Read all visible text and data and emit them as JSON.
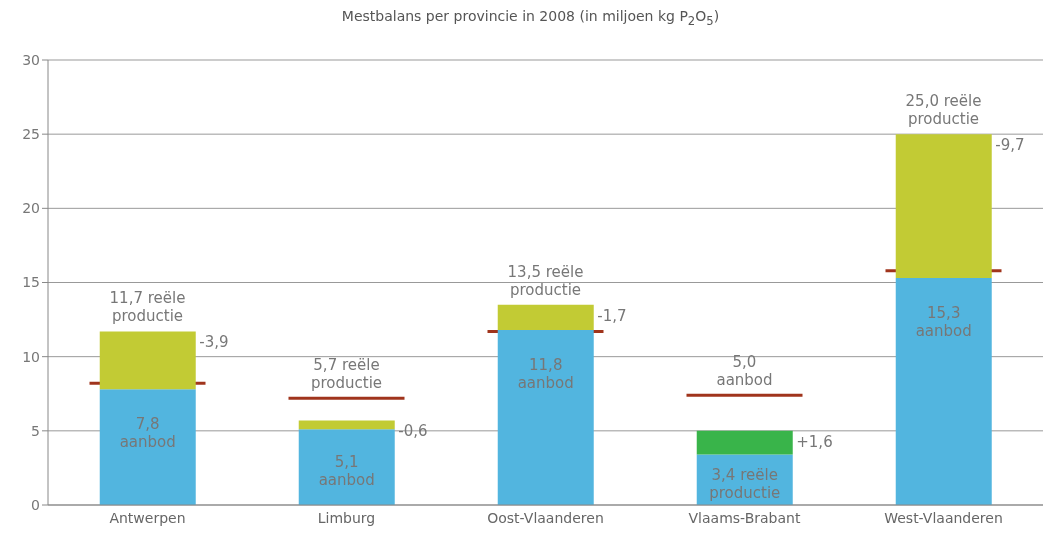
{
  "chart_data": {
    "type": "bar",
    "title": "Mestbalans per provincie in 2008 (in miljoen kg P$_{2}$O$_{5}$)",
    "categories": [
      "Antwerpen",
      "Limburg",
      "Oost-Vlaanderen",
      "Vlaams-Brabant",
      "West-Vlaanderen"
    ],
    "stacked": true,
    "ylim": [
      0,
      30
    ],
    "yticks": [
      0,
      5,
      10,
      15,
      20,
      25,
      30
    ],
    "grid": "y",
    "series": [
      {
        "type": "bar",
        "color": "#52b5df",
        "values": [
          7.8,
          5.1,
          11.8,
          3.4,
          15.3
        ],
        "value_labels": [
          "7,8 aanbod",
          "5,1 aanbod",
          "11,8 aanbod",
          "3,4 reële productie",
          "15,3 aanbod"
        ]
      },
      {
        "type": "bar",
        "colors": [
          "#c2cb34",
          "#c2cb34",
          "#c2cb34",
          "#39b44a",
          "#c2cb34"
        ],
        "values": [
          3.9,
          0.6,
          1.7,
          1.6,
          9.7
        ]
      }
    ],
    "ref_lines": [
      {
        "axis": "y",
        "value": 8.2,
        "color": "#a0341c"
      },
      {
        "axis": "y",
        "value": 7.2,
        "color": "#a0341c"
      },
      {
        "axis": "y",
        "value": 11.7,
        "color": "#a0341c"
      },
      {
        "axis": "y",
        "value": 7.4,
        "color": "#a0341c"
      },
      {
        "axis": "y",
        "value": 15.8,
        "color": "#a0341c"
      }
    ],
    "annotations": [
      {
        "text": "11,7 reële productie",
        "x": "Antwerpen",
        "y": 11.7
      },
      {
        "text": "5,7 reële productie",
        "x": "Limburg",
        "y": 7.2
      },
      {
        "text": "13,5 reële productie",
        "x": "Oost-Vlaanderen",
        "y": 13.5
      },
      {
        "text": "5,0 aanbod",
        "x": "Vlaams-Brabant",
        "y": 7.4
      },
      {
        "text": "25,0 reële productie",
        "x": "West-Vlaanderen",
        "y": 25.0
      },
      "-3,9",
      "-0,6",
      "-1,7",
      "+1,6",
      "-9,7"
    ]
  }
}
